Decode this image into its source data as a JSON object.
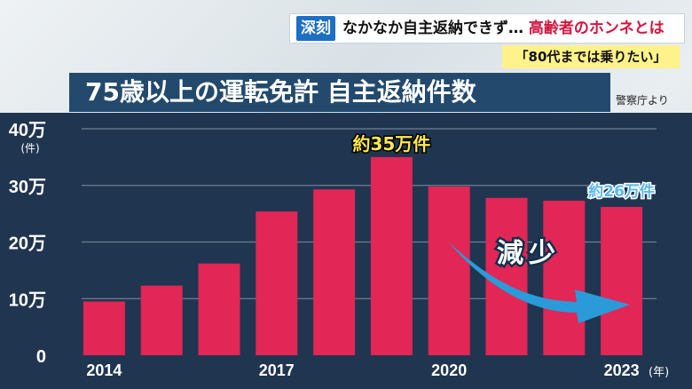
{
  "header": {
    "tag": "深刻",
    "headline_a": "なかなか自主返納できず…",
    "headline_b": "高齢者のホンネとは",
    "subhead": "「80代までは乗りたい」"
  },
  "title": "75歳以上の運転免許 自主返納件数",
  "source": "警察庁より",
  "colors": {
    "bar": "#e22655",
    "panel": "#203550",
    "title_bg": "#234a6d",
    "tag_bg": "#1d6fc4",
    "arrow": "#2a9bd8",
    "callout": "#ffe94d",
    "callout_blue": "#5ab8ef"
  },
  "chart_data": {
    "type": "bar",
    "categories": [
      "2014",
      "2015",
      "2016",
      "2017",
      "2018",
      "2019",
      "2020",
      "2021",
      "2022",
      "2023"
    ],
    "x_tick_labels": [
      "2014",
      "",
      "",
      "2017",
      "",
      "",
      "2020",
      "",
      "",
      "2023"
    ],
    "x_unit": "(年)",
    "values": [
      9.5,
      12.3,
      16.2,
      25.4,
      29.3,
      35.0,
      29.8,
      27.8,
      27.3,
      26.2
    ],
    "y_unit_scale": "万",
    "ylim": [
      0,
      40
    ],
    "y_ticks": [
      {
        "value": 0,
        "label": "0"
      },
      {
        "value": 10,
        "label": "10万"
      },
      {
        "value": 20,
        "label": "20万"
      },
      {
        "value": 30,
        "label": "30万"
      },
      {
        "value": 40,
        "label": "40万"
      }
    ],
    "y_unit_label": "(件)",
    "grid": true,
    "annotations": {
      "peak": {
        "text": "約35万件",
        "category": "2019"
      },
      "last": {
        "text": "約26万件",
        "category": "2023"
      },
      "trend": {
        "text": "減少"
      }
    }
  }
}
